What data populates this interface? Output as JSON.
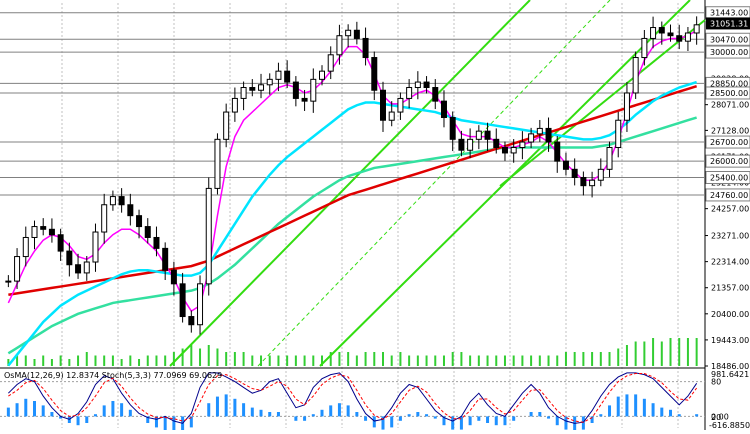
{
  "chart_data": {
    "type": "line",
    "style": "candlestick",
    "colors": {
      "background": "#ffffff",
      "grid": "#c0c0c0",
      "candles": "#000000",
      "volume": "#32cd32",
      "ma_magenta": "#ff00ff",
      "ma_cyan": "#00e5ff",
      "ma_green": "#33e0a0",
      "ma_red": "#e00000",
      "channel": "#33dd11",
      "osma_hist": "#1e90ff",
      "stoch_main": "#00008b",
      "stoch_signal": "#ff0000"
    },
    "price_axis": {
      "ylim": [
        18486,
        31800
      ],
      "ticks": [
        "18486.00",
        "19443.00",
        "20400.00",
        "21357.00",
        "22314.00",
        "23271.00",
        "24257.00",
        "25214.00",
        "26171.00",
        "27128.00",
        "28071.00",
        "29028.00"
      ],
      "level_labels": [
        {
          "text": "31443.00",
          "value": 31443,
          "style": "line"
        },
        {
          "text": "31051.31",
          "value": 31051,
          "style": "current"
        },
        {
          "text": "30470.00",
          "value": 30470,
          "style": "line"
        },
        {
          "text": "30000.00",
          "value": 30000,
          "style": "line"
        },
        {
          "text": "28850.00",
          "value": 28850,
          "style": "line"
        },
        {
          "text": "28500.00",
          "value": 28500,
          "style": "line"
        },
        {
          "text": "26700.00",
          "value": 26700,
          "style": "line"
        },
        {
          "text": "26000.00",
          "value": 26000,
          "style": "line"
        },
        {
          "text": "25400.00",
          "value": 25400,
          "style": "line"
        },
        {
          "text": "24760.00",
          "value": 24760,
          "style": "line"
        }
      ]
    },
    "price_series": [
      21600,
      22500,
      23200,
      23600,
      23500,
      23300,
      22700,
      22200,
      21900,
      22300,
      23400,
      24400,
      24700,
      24400,
      24000,
      23600,
      23200,
      22800,
      22000,
      21500,
      20300,
      20000,
      21500,
      25000,
      26800,
      27800,
      28300,
      28700,
      28600,
      28800,
      29000,
      29300,
      28900,
      28300,
      28200,
      29000,
      29300,
      29900,
      30600,
      30800,
      30500,
      29800,
      28600,
      27500,
      27800,
      28300,
      28700,
      28900,
      28700,
      28200,
      27600,
      26800,
      26400,
      26800,
      27100,
      26800,
      26500,
      26300,
      26500,
      26700,
      27000,
      27200,
      26700,
      26000,
      25700,
      25400,
      25100,
      25300,
      25700,
      26500,
      27500,
      28500,
      29800,
      30500,
      30900,
      30700,
      30600,
      30400,
      30700,
      31000
    ],
    "ma_series": {
      "ma_magenta": [
        20800,
        21500,
        22200,
        22700,
        23100,
        23300,
        23200,
        22900,
        22500,
        22400,
        22600,
        23000,
        23300,
        23500,
        23500,
        23300,
        23000,
        22700,
        22200,
        21700,
        21000,
        20500,
        20700,
        22000,
        24000,
        25800,
        26900,
        27500,
        27800,
        28100,
        28400,
        28700,
        28800,
        28700,
        28500,
        28600,
        28900,
        29300,
        29800,
        30200,
        30200,
        29900,
        29200,
        28400,
        28100,
        28100,
        28300,
        28500,
        28600,
        28400,
        28000,
        27500,
        27000,
        26900,
        26900,
        26900,
        26700,
        26500,
        26500,
        26600,
        26700,
        26900,
        26700,
        26300,
        25900,
        25600,
        25300,
        25300,
        25500,
        26000,
        26800,
        27800,
        28900,
        29700,
        30200,
        30400,
        30500,
        30500,
        30600,
        30800
      ],
      "ma_cyan": [
        18500,
        18900,
        19300,
        19700,
        20100,
        20400,
        20700,
        20900,
        21100,
        21250,
        21400,
        21550,
        21700,
        21850,
        21950,
        22000,
        22000,
        21950,
        21900,
        21850,
        21800,
        21800,
        21900,
        22200,
        22700,
        23200,
        23700,
        24200,
        24700,
        25100,
        25500,
        25850,
        26150,
        26400,
        26650,
        26900,
        27150,
        27400,
        27650,
        27900,
        28050,
        28150,
        28150,
        28100,
        28050,
        28000,
        27950,
        27900,
        27850,
        27800,
        27700,
        27600,
        27500,
        27450,
        27400,
        27350,
        27300,
        27250,
        27200,
        27150,
        27100,
        27050,
        27000,
        26950,
        26900,
        26850,
        26800,
        26800,
        26850,
        26950,
        27150,
        27400,
        27700,
        27950,
        28200,
        28400,
        28550,
        28700,
        28800,
        28900
      ],
      "ma_green": [
        18950,
        19150,
        19350,
        19550,
        19750,
        19950,
        20100,
        20250,
        20400,
        20500,
        20600,
        20700,
        20800,
        20850,
        20900,
        20950,
        21000,
        21050,
        21100,
        21150,
        21200,
        21250,
        21350,
        21500,
        21700,
        21950,
        22200,
        22500,
        22800,
        23100,
        23400,
        23700,
        23950,
        24200,
        24450,
        24700,
        24900,
        25100,
        25300,
        25450,
        25550,
        25650,
        25750,
        25800,
        25850,
        25900,
        25950,
        26000,
        26050,
        26100,
        26150,
        26200,
        26250,
        26300,
        26350,
        26400,
        26450,
        26500,
        26500,
        26500,
        26500,
        26500,
        26500,
        26500,
        26500,
        26500,
        26500,
        26500,
        26550,
        26600,
        26700,
        26800,
        26900,
        27000,
        27100,
        27200,
        27300,
        27400,
        27500,
        27600
      ],
      "ma_red": [
        21100,
        21150,
        21200,
        21250,
        21300,
        21350,
        21400,
        21450,
        21500,
        21550,
        21600,
        21650,
        21700,
        21750,
        21800,
        21850,
        21900,
        21950,
        22000,
        22050,
        22100,
        22150,
        22250,
        22350,
        22500,
        22650,
        22800,
        22950,
        23100,
        23250,
        23400,
        23550,
        23700,
        23850,
        24000,
        24150,
        24300,
        24450,
        24600,
        24750,
        24850,
        24950,
        25050,
        25150,
        25250,
        25350,
        25450,
        25550,
        25650,
        25750,
        25850,
        25950,
        26050,
        26150,
        26250,
        26350,
        26450,
        26550,
        26650,
        26750,
        26850,
        26950,
        27050,
        27150,
        27250,
        27350,
        27450,
        27550,
        27650,
        27750,
        27850,
        27950,
        28050,
        28150,
        28250,
        28350,
        28450,
        28550,
        28650,
        28750
      ]
    },
    "volume_series": [
      2,
      3,
      3,
      2,
      3,
      2,
      3,
      2,
      3,
      4,
      3,
      3,
      3,
      2,
      3,
      2,
      3,
      3,
      3,
      4,
      5,
      6,
      5,
      6,
      5,
      4,
      4,
      4,
      3,
      3,
      3,
      3,
      3,
      3,
      3,
      3,
      3,
      4,
      4,
      4,
      3,
      4,
      4,
      4,
      3,
      4,
      3,
      3,
      3,
      3,
      3,
      4,
      4,
      3,
      3,
      3,
      3,
      3,
      3,
      3,
      3,
      3,
      3,
      3,
      4,
      4,
      4,
      4,
      4,
      4,
      5,
      6,
      7,
      7,
      8,
      7,
      8,
      8,
      8,
      8
    ],
    "oscillator": {
      "label": "OsMA(12,26,9) 12.8374  Stoch(5,3,3) 77.0969 69.0629",
      "scale_top": "981.6421",
      "ticks": [
        "80",
        "20",
        "0.00"
      ],
      "scale_bottom": "-616.8850",
      "osma_hist": [
        0.4,
        0.6,
        0.8,
        0.7,
        0.5,
        0.2,
        -0.1,
        -0.3,
        -0.4,
        -0.3,
        0.1,
        0.5,
        0.7,
        0.6,
        0.3,
        0.0,
        -0.3,
        -0.5,
        -0.7,
        -0.8,
        -0.7,
        -0.5,
        0.0,
        0.6,
        0.9,
        1.0,
        0.8,
        0.6,
        0.4,
        0.3,
        0.2,
        0.2,
        0.0,
        -0.2,
        -0.2,
        0.1,
        0.3,
        0.5,
        0.6,
        0.5,
        0.2,
        -0.2,
        -0.5,
        -0.6,
        -0.5,
        -0.2,
        0.1,
        0.2,
        0.1,
        -0.1,
        -0.4,
        -0.6,
        -0.6,
        -0.4,
        -0.2,
        -0.3,
        -0.4,
        -0.4,
        -0.2,
        0.0,
        0.2,
        0.2,
        -0.1,
        -0.4,
        -0.6,
        -0.7,
        -0.6,
        -0.3,
        0.1,
        0.5,
        0.9,
        1.0,
        1.0,
        0.8,
        0.6,
        0.4,
        0.3,
        0.1,
        0.0,
        0.1
      ],
      "stoch_main": [
        60,
        75,
        85,
        80,
        55,
        35,
        20,
        15,
        25,
        45,
        75,
        90,
        85,
        60,
        40,
        25,
        18,
        15,
        20,
        12,
        8,
        25,
        70,
        95,
        95,
        88,
        80,
        70,
        60,
        65,
        80,
        85,
        60,
        35,
        40,
        70,
        85,
        92,
        95,
        80,
        50,
        25,
        12,
        15,
        35,
        60,
        75,
        70,
        50,
        30,
        18,
        12,
        20,
        45,
        60,
        40,
        25,
        20,
        40,
        60,
        75,
        60,
        35,
        20,
        12,
        8,
        10,
        30,
        55,
        75,
        88,
        95,
        95,
        92,
        85,
        70,
        55,
        40,
        55,
        77
      ],
      "stoch_signal": [
        55,
        65,
        78,
        82,
        68,
        48,
        30,
        20,
        22,
        35,
        55,
        78,
        86,
        72,
        52,
        35,
        24,
        18,
        18,
        16,
        12,
        18,
        45,
        75,
        90,
        92,
        85,
        76,
        68,
        65,
        72,
        80,
        72,
        50,
        40,
        55,
        75,
        86,
        92,
        88,
        65,
        40,
        22,
        15,
        25,
        45,
        65,
        72,
        62,
        42,
        26,
        16,
        16,
        30,
        50,
        50,
        35,
        24,
        30,
        48,
        65,
        66,
        48,
        30,
        18,
        12,
        10,
        18,
        40,
        62,
        80,
        90,
        94,
        94,
        88,
        78,
        63,
        50,
        48,
        69
      ]
    }
  }
}
